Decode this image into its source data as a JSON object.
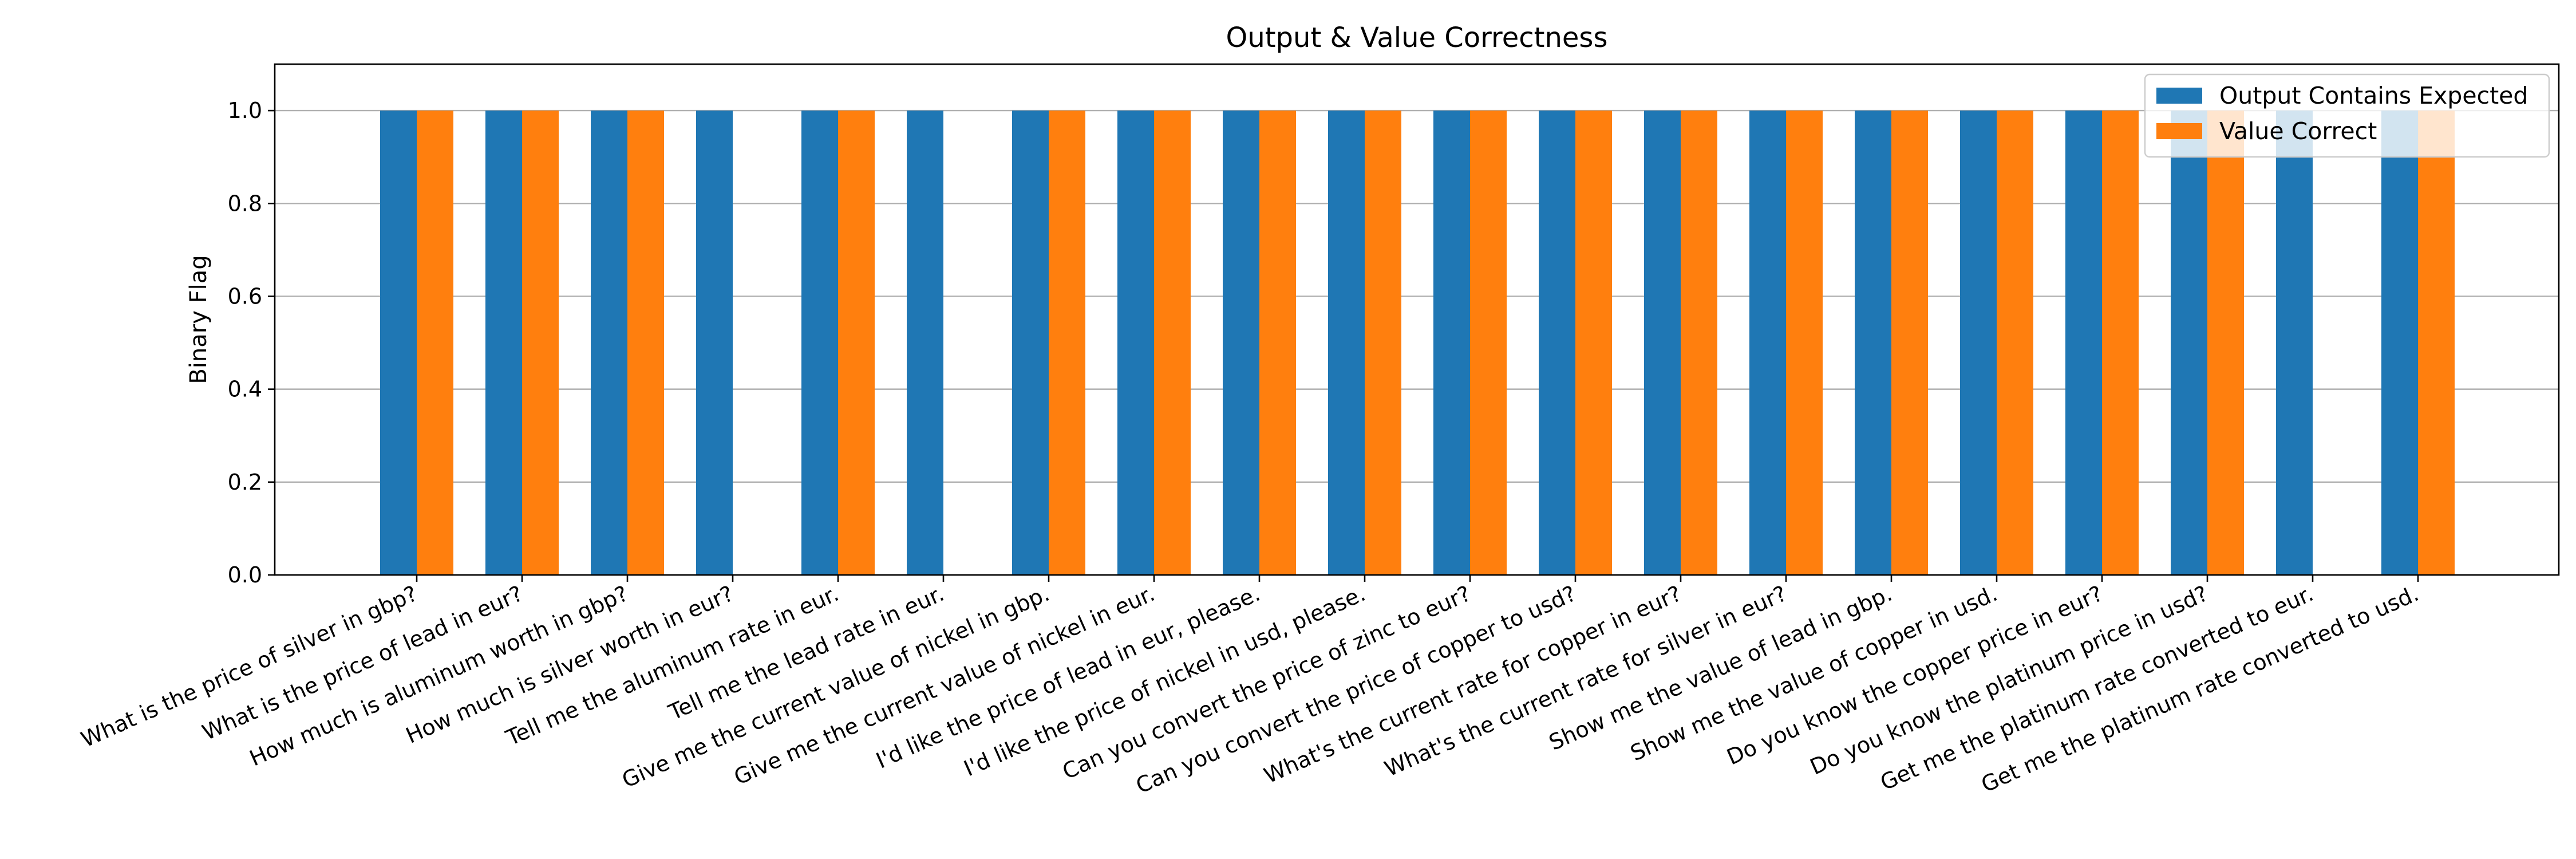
{
  "chart_data": {
    "type": "bar",
    "title": "Output & Value Correctness",
    "xlabel": "",
    "ylabel": "Binary Flag",
    "ylim": [
      0,
      1.1
    ],
    "yticks": [
      "0.0",
      "0.2",
      "0.4",
      "0.6",
      "0.8",
      "1.0"
    ],
    "grid": "y",
    "legend_position": "top-right",
    "categories": [
      "What is the price of silver in gbp?",
      "What is the price of lead in eur?",
      "How much is aluminum worth in gbp?",
      "How much is silver worth in eur?",
      "Tell me the aluminum rate in eur.",
      "Tell me the lead rate in eur.",
      "Give me the current value of nickel in gbp.",
      "Give me the current value of nickel in eur.",
      "I'd like the price of lead in eur, please.",
      "I'd like the price of nickel in usd, please.",
      "Can you convert the price of zinc to eur?",
      "Can you convert the price of copper to usd?",
      "What's the current rate for copper in eur?",
      "What's the current rate for silver in eur?",
      "Show me the value of lead in gbp.",
      "Show me the value of copper in usd.",
      "Do you know the copper price in eur?",
      "Do you know the platinum price in usd?",
      "Get me the platinum rate converted to eur.",
      "Get me the platinum rate converted to usd."
    ],
    "series": [
      {
        "name": "Output Contains Expected",
        "color": "#1f77b4",
        "values": [
          1,
          1,
          1,
          1,
          1,
          1,
          1,
          1,
          1,
          1,
          1,
          1,
          1,
          1,
          1,
          1,
          1,
          1,
          1,
          1
        ]
      },
      {
        "name": "Value Correct",
        "color": "#ff7f0e",
        "values": [
          1,
          1,
          1,
          0,
          1,
          0,
          1,
          1,
          1,
          1,
          1,
          1,
          1,
          1,
          1,
          1,
          1,
          1,
          0,
          1
        ]
      }
    ]
  }
}
